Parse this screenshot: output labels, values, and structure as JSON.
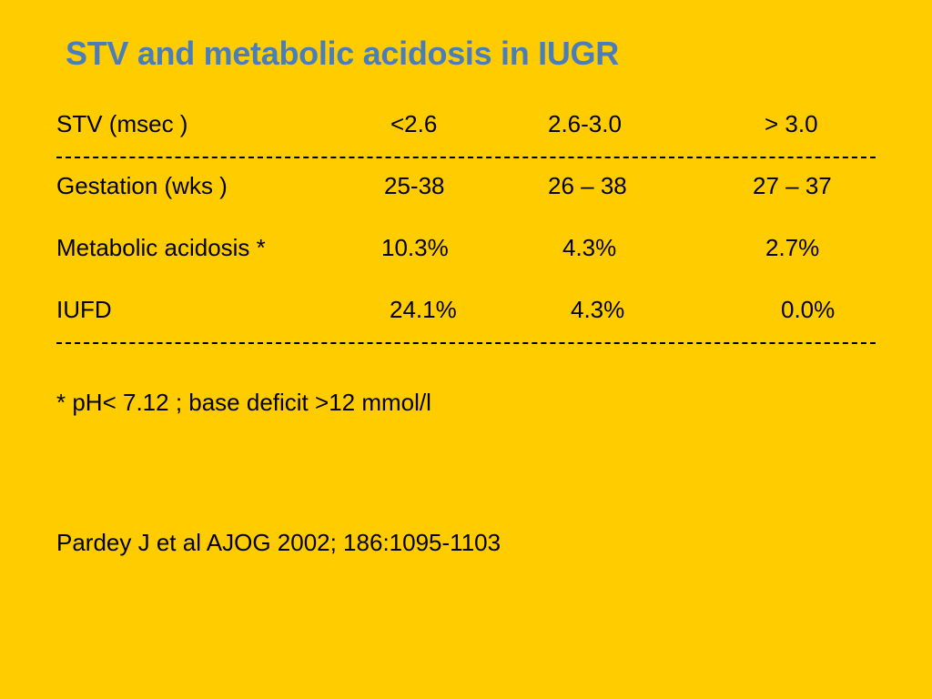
{
  "slide": {
    "title": "STV and metabolic acidosis in IUGR",
    "table": {
      "header": [
        "STV (msec )",
        "<2.6",
        "2.6-3.0",
        "> 3.0"
      ],
      "rows": [
        [
          "Gestation (wks )",
          "25-38",
          "26 – 38",
          "27 – 37"
        ],
        [
          "Metabolic acidosis *",
          "10.3%",
          "4.3%",
          "2.7%"
        ],
        [
          "IUFD",
          "24.1%",
          "4.3%",
          "0.0%"
        ]
      ]
    },
    "footnote": "* pH< 7.12 ; base deficit >12 mmol/l",
    "citation": "Pardey J et al AJOG 2002; 186:1095-1103"
  },
  "colors": {
    "background": "#FFCC00",
    "title": "#4A7EBB",
    "text": "#000000"
  }
}
